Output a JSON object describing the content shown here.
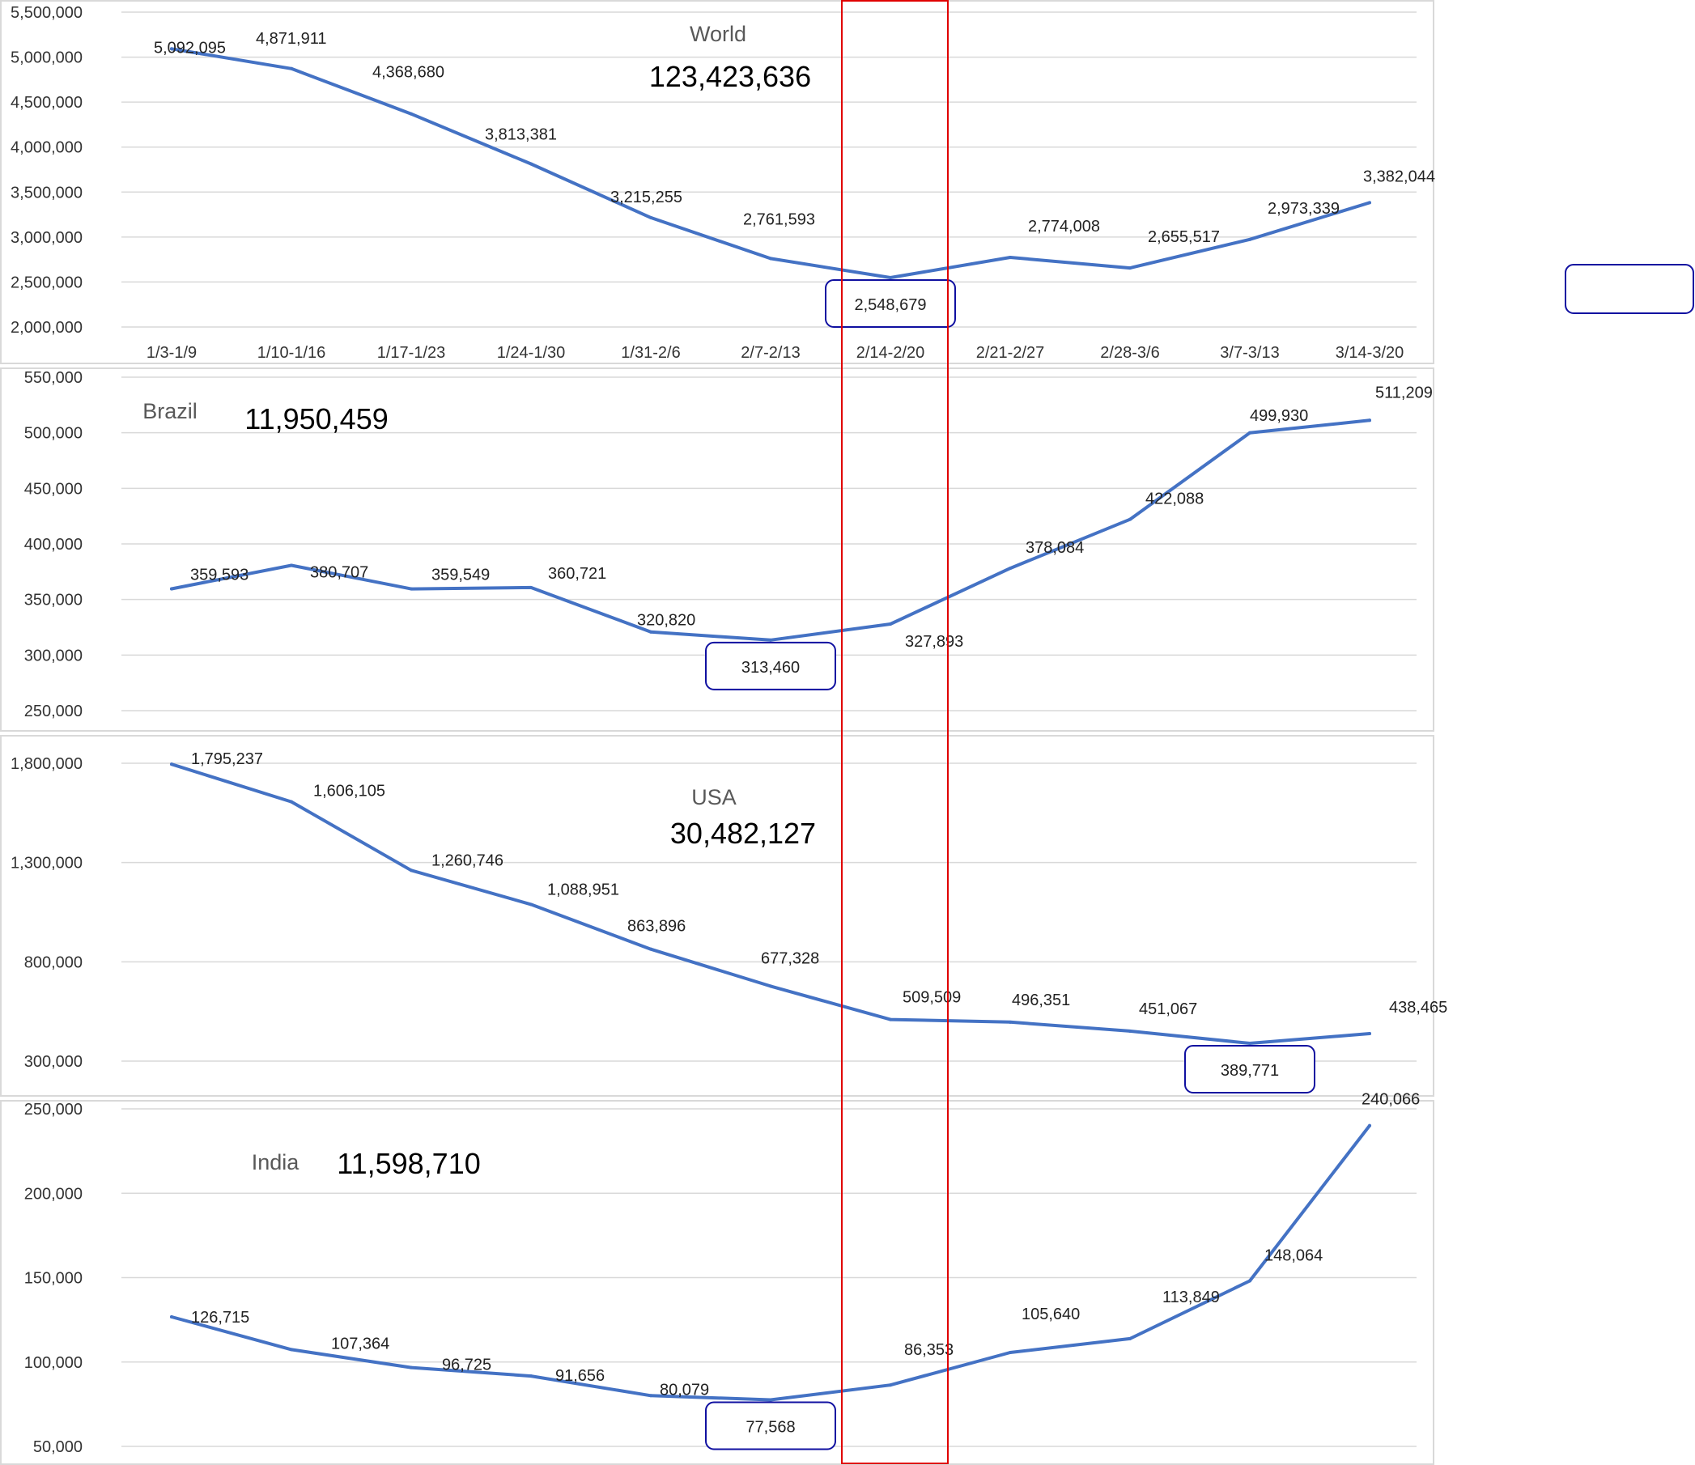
{
  "colors": {
    "series": "#4472C4",
    "highlight_column": "#E00000",
    "min_box": "#1010A0",
    "gridline": "#D9D9D9",
    "panel_border": "#D9D9D9"
  },
  "highlight_category": "2/14-2/20",
  "chart_data": [
    {
      "type": "line",
      "title": "World",
      "total": "123,423,636",
      "categories": [
        "1/3-1/9",
        "1/10-1/16",
        "1/17-1/23",
        "1/24-1/30",
        "1/31-2/6",
        "2/7-2/13",
        "2/14-2/20",
        "2/21-2/27",
        "2/28-3/6",
        "3/7-3/13",
        "3/14-3/20"
      ],
      "values": [
        5092095,
        4871911,
        4368680,
        3813381,
        3215255,
        2761593,
        2548679,
        2774008,
        2655517,
        2973339,
        3382044
      ],
      "value_labels": [
        "5,092,095",
        "4,871,911",
        "4,368,680",
        "3,813,381",
        "3,215,255",
        "2,761,593",
        "2,548,679",
        "2,774,008",
        "2,655,517",
        "2,973,339",
        "3,382,044"
      ],
      "yticks": [
        2000000,
        2500000,
        3000000,
        3500000,
        4000000,
        4500000,
        5000000,
        5500000
      ],
      "ytick_labels": [
        "2,000,000",
        "2,500,000",
        "3,000,000",
        "3,500,000",
        "4,000,000",
        "4,500,000",
        "5,000,000",
        "5,500,000"
      ],
      "ylim": [
        2000000,
        5500000
      ],
      "grid": true,
      "show_x_labels": true,
      "min_index": 6
    },
    {
      "type": "line",
      "title": "Brazil",
      "total": "11,950,459",
      "categories": [
        "1/3-1/9",
        "1/10-1/16",
        "1/17-1/23",
        "1/24-1/30",
        "1/31-2/6",
        "2/7-2/13",
        "2/14-2/20",
        "2/21-2/27",
        "2/28-3/6",
        "3/7-3/13",
        "3/14-3/20"
      ],
      "values": [
        359593,
        380707,
        359549,
        360721,
        320820,
        313460,
        327893,
        378084,
        422088,
        499930,
        511209
      ],
      "value_labels": [
        "359,593",
        "380,707",
        "359,549",
        "360,721",
        "320,820",
        "313,460",
        "327,893",
        "378,084",
        "422,088",
        "499,930",
        "511,209"
      ],
      "yticks": [
        250000,
        300000,
        350000,
        400000,
        450000,
        500000,
        550000
      ],
      "ytick_labels": [
        "250,000",
        "300,000",
        "350,000",
        "400,000",
        "450,000",
        "500,000",
        "550,000"
      ],
      "ylim": [
        250000,
        550000
      ],
      "grid": true,
      "show_x_labels": false,
      "min_index": 5
    },
    {
      "type": "line",
      "title": "USA",
      "total": "30,482,127",
      "categories": [
        "1/3-1/9",
        "1/10-1/16",
        "1/17-1/23",
        "1/24-1/30",
        "1/31-2/6",
        "2/7-2/13",
        "2/14-2/20",
        "2/21-2/27",
        "2/28-3/6",
        "3/7-3/13",
        "3/14-3/20"
      ],
      "values": [
        1795237,
        1606105,
        1260746,
        1088951,
        863896,
        677328,
        509509,
        496351,
        451067,
        389771,
        438465
      ],
      "value_labels": [
        "1,795,237",
        "1,606,105",
        "1,260,746",
        "1,088,951",
        "863,896",
        "677,328",
        "509,509",
        "496,351",
        "451,067",
        "389,771",
        "438,465"
      ],
      "yticks": [
        300000,
        800000,
        1300000,
        1800000
      ],
      "ytick_labels": [
        "300,000",
        "800,000",
        "1,300,000",
        "1,800,000"
      ],
      "ylim": [
        300000,
        1800000
      ],
      "grid": true,
      "show_x_labels": false,
      "min_index": 9
    },
    {
      "type": "line",
      "title": "India",
      "total": "11,598,710",
      "categories": [
        "1/3-1/9",
        "1/10-1/16",
        "1/17-1/23",
        "1/24-1/30",
        "1/31-2/6",
        "2/7-2/13",
        "2/14-2/20",
        "2/21-2/27",
        "2/28-3/6",
        "3/7-3/13",
        "3/14-3/20"
      ],
      "values": [
        126715,
        107364,
        96725,
        91656,
        80079,
        77568,
        86353,
        105640,
        113849,
        148064,
        240066
      ],
      "value_labels": [
        "126,715",
        "107,364",
        "96,725",
        "91,656",
        "80,079",
        "77,568",
        "86,353",
        "105,640",
        "113,849",
        "148,064",
        "240,066"
      ],
      "yticks": [
        50000,
        100000,
        150000,
        200000,
        250000
      ],
      "ytick_labels": [
        "50,000",
        "100,000",
        "150,000",
        "200,000",
        "250,000"
      ],
      "ylim": [
        50000,
        250000
      ],
      "grid": true,
      "show_x_labels": false,
      "min_index": 5
    }
  ]
}
